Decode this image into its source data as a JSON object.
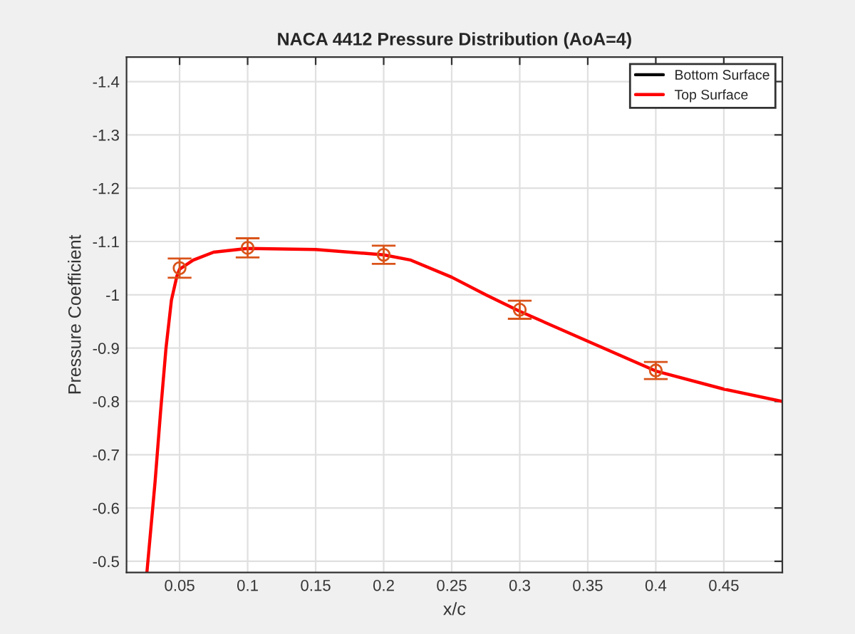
{
  "chart_data": {
    "type": "line",
    "title": "NACA 4412 Pressure Distribution (AoA=4)",
    "xlabel": "x/c",
    "ylabel": "Pressure Coefficient",
    "xlim": [
      0.011,
      0.493
    ],
    "xticks": [
      0.05,
      0.1,
      0.15,
      0.2,
      0.25,
      0.3,
      0.35,
      0.4,
      0.45
    ],
    "ylim": [
      -0.479,
      -1.446
    ],
    "yticks": [
      -1.4,
      -1.3,
      -1.2,
      -1.1,
      -1,
      -0.9,
      -0.8,
      -0.7,
      -0.6,
      -0.5
    ],
    "grid": true,
    "legend": "top right",
    "series": [
      {
        "name": "Bottom Surface",
        "color": "#000000"
      },
      {
        "name": "Top Surface",
        "color": "#ff0000",
        "x": [
          0.026,
          0.032,
          0.036,
          0.04,
          0.044,
          0.048,
          0.05,
          0.06,
          0.075,
          0.1,
          0.15,
          0.2,
          0.22,
          0.25,
          0.275,
          0.3,
          0.35,
          0.4,
          0.45,
          0.493
        ],
        "values": [
          -0.48,
          -0.65,
          -0.78,
          -0.9,
          -0.99,
          -1.035,
          -1.048,
          -1.065,
          -1.08,
          -1.087,
          -1.085,
          -1.075,
          -1.065,
          -1.033,
          -1.0,
          -0.969,
          -0.913,
          -0.857,
          -0.823,
          -0.8
        ]
      },
      {
        "type": "scatter",
        "color": "#d95319",
        "marker": "circle",
        "x": [
          0.05,
          0.1,
          0.2,
          0.3,
          0.4
        ],
        "values": [
          -1.05,
          -1.088,
          -1.075,
          -0.972,
          -0.858
        ],
        "errors": [
          0.018,
          0.018,
          0.017,
          0.017,
          0.016
        ]
      }
    ]
  }
}
